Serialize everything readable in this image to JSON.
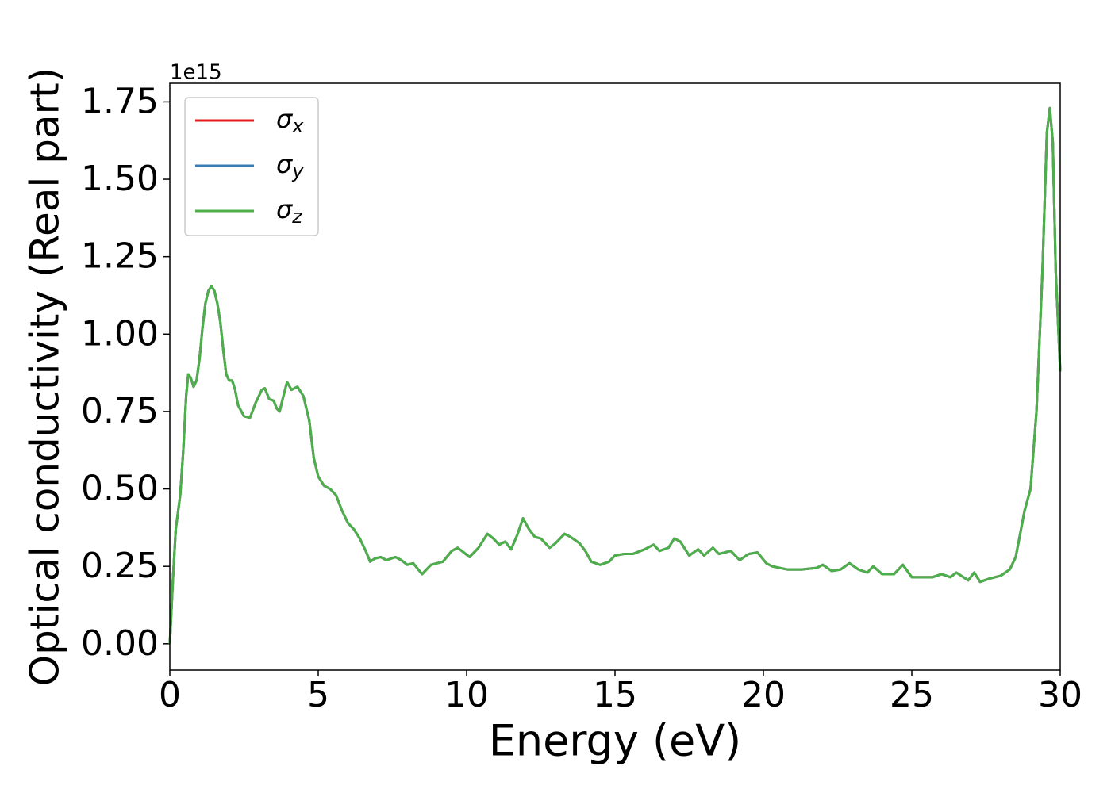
{
  "chart_data": {
    "type": "line",
    "y_label": "Optical conductivity (Real part)",
    "x_label": "Energy (eV)",
    "y_offset_label": "1e15",
    "legend": "upper left",
    "xlim": [
      0,
      30
    ],
    "xticks": [
      0,
      5,
      10,
      15,
      20,
      25,
      30
    ],
    "ylim": [
      -0.085,
      1.81
    ],
    "yticks": [
      {
        "value": 0,
        "label": "0.00"
      },
      0.25,
      {
        "value": 0.5,
        "label": "0.50"
      },
      0.75,
      {
        "value": 1,
        "label": "1.00"
      },
      1.25,
      {
        "value": 1.5,
        "label": "1.50"
      },
      1.75
    ],
    "x": [
      0,
      0.1,
      0.2,
      0.35,
      0.45,
      0.55,
      0.62,
      0.7,
      0.8,
      0.9,
      1.0,
      1.1,
      1.2,
      1.3,
      1.4,
      1.5,
      1.6,
      1.7,
      1.8,
      1.9,
      2.0,
      2.1,
      2.2,
      2.3,
      2.5,
      2.7,
      2.9,
      3.1,
      3.2,
      3.35,
      3.5,
      3.6,
      3.7,
      3.8,
      3.95,
      4.1,
      4.3,
      4.5,
      4.7,
      4.85,
      5.0,
      5.2,
      5.4,
      5.6,
      5.8,
      6.0,
      6.2,
      6.4,
      6.6,
      6.75,
      6.9,
      7.1,
      7.3,
      7.6,
      7.8,
      8.0,
      8.2,
      8.5,
      8.8,
      9.2,
      9.5,
      9.7,
      9.9,
      10.1,
      10.4,
      10.7,
      10.9,
      11.1,
      11.3,
      11.5,
      11.7,
      11.9,
      12.1,
      12.3,
      12.5,
      12.8,
      13.0,
      13.3,
      13.5,
      13.8,
      14.0,
      14.2,
      14.5,
      14.8,
      15.0,
      15.3,
      15.6,
      16.0,
      16.3,
      16.5,
      16.8,
      17.0,
      17.2,
      17.5,
      17.8,
      18.0,
      18.3,
      18.5,
      18.9,
      19.2,
      19.5,
      19.8,
      20.1,
      20.3,
      20.8,
      21.3,
      21.8,
      22.0,
      22.3,
      22.6,
      22.9,
      23.2,
      23.5,
      23.7,
      24.0,
      24.4,
      24.7,
      25.0,
      25.3,
      25.7,
      26.0,
      26.3,
      26.5,
      26.9,
      27.1,
      27.3,
      27.6,
      28.0,
      28.3,
      28.5,
      28.8,
      29.0,
      29.2,
      29.4,
      29.55,
      29.65,
      29.75,
      29.85,
      30
    ],
    "series": [
      {
        "name": "σx",
        "color": "#e41a1c",
        "values": [
          0,
          0.2,
          0.37,
          0.48,
          0.62,
          0.8,
          0.87,
          0.86,
          0.83,
          0.85,
          0.92,
          1.02,
          1.1,
          1.14,
          1.155,
          1.14,
          1.1,
          1.04,
          0.95,
          0.87,
          0.85,
          0.85,
          0.82,
          0.77,
          0.735,
          0.73,
          0.78,
          0.82,
          0.825,
          0.79,
          0.785,
          0.76,
          0.75,
          0.79,
          0.845,
          0.82,
          0.83,
          0.8,
          0.72,
          0.6,
          0.54,
          0.51,
          0.5,
          0.48,
          0.43,
          0.39,
          0.37,
          0.34,
          0.3,
          0.265,
          0.275,
          0.28,
          0.27,
          0.28,
          0.27,
          0.255,
          0.26,
          0.225,
          0.255,
          0.265,
          0.3,
          0.31,
          0.295,
          0.28,
          0.31,
          0.355,
          0.34,
          0.32,
          0.33,
          0.305,
          0.35,
          0.405,
          0.37,
          0.345,
          0.34,
          0.31,
          0.325,
          0.355,
          0.345,
          0.325,
          0.3,
          0.265,
          0.255,
          0.265,
          0.285,
          0.29,
          0.29,
          0.305,
          0.32,
          0.3,
          0.31,
          0.34,
          0.33,
          0.285,
          0.305,
          0.285,
          0.31,
          0.29,
          0.3,
          0.27,
          0.29,
          0.295,
          0.26,
          0.25,
          0.24,
          0.24,
          0.245,
          0.255,
          0.235,
          0.24,
          0.26,
          0.24,
          0.23,
          0.25,
          0.225,
          0.225,
          0.255,
          0.215,
          0.215,
          0.215,
          0.225,
          0.215,
          0.23,
          0.205,
          0.23,
          0.2,
          0.21,
          0.22,
          0.24,
          0.28,
          0.43,
          0.5,
          0.75,
          1.2,
          1.65,
          1.73,
          1.62,
          1.2,
          0.88
        ]
      },
      {
        "name": "σy",
        "color": "#377eb8",
        "values": [
          0,
          0.2,
          0.37,
          0.48,
          0.62,
          0.8,
          0.87,
          0.86,
          0.83,
          0.85,
          0.92,
          1.02,
          1.1,
          1.14,
          1.155,
          1.14,
          1.1,
          1.04,
          0.95,
          0.87,
          0.85,
          0.85,
          0.82,
          0.77,
          0.735,
          0.73,
          0.78,
          0.82,
          0.825,
          0.79,
          0.785,
          0.76,
          0.75,
          0.79,
          0.845,
          0.82,
          0.83,
          0.8,
          0.72,
          0.6,
          0.54,
          0.51,
          0.5,
          0.48,
          0.43,
          0.39,
          0.37,
          0.34,
          0.3,
          0.265,
          0.275,
          0.28,
          0.27,
          0.28,
          0.27,
          0.255,
          0.26,
          0.225,
          0.255,
          0.265,
          0.3,
          0.31,
          0.295,
          0.28,
          0.31,
          0.355,
          0.34,
          0.32,
          0.33,
          0.305,
          0.35,
          0.405,
          0.37,
          0.345,
          0.34,
          0.31,
          0.325,
          0.355,
          0.345,
          0.325,
          0.3,
          0.265,
          0.255,
          0.265,
          0.285,
          0.29,
          0.29,
          0.305,
          0.32,
          0.3,
          0.31,
          0.34,
          0.33,
          0.285,
          0.305,
          0.285,
          0.31,
          0.29,
          0.3,
          0.27,
          0.29,
          0.295,
          0.26,
          0.25,
          0.24,
          0.24,
          0.245,
          0.255,
          0.235,
          0.24,
          0.26,
          0.24,
          0.23,
          0.25,
          0.225,
          0.225,
          0.255,
          0.215,
          0.215,
          0.215,
          0.225,
          0.215,
          0.23,
          0.205,
          0.23,
          0.2,
          0.21,
          0.22,
          0.24,
          0.28,
          0.43,
          0.5,
          0.75,
          1.2,
          1.65,
          1.73,
          1.62,
          1.2,
          0.88
        ]
      },
      {
        "name": "σz",
        "color": "#4daf4a",
        "values": [
          0,
          0.2,
          0.37,
          0.48,
          0.62,
          0.8,
          0.87,
          0.86,
          0.83,
          0.85,
          0.92,
          1.02,
          1.1,
          1.14,
          1.155,
          1.14,
          1.1,
          1.04,
          0.95,
          0.87,
          0.85,
          0.85,
          0.82,
          0.77,
          0.735,
          0.73,
          0.78,
          0.82,
          0.825,
          0.79,
          0.785,
          0.76,
          0.75,
          0.79,
          0.845,
          0.82,
          0.83,
          0.8,
          0.72,
          0.6,
          0.54,
          0.51,
          0.5,
          0.48,
          0.43,
          0.39,
          0.37,
          0.34,
          0.3,
          0.265,
          0.275,
          0.28,
          0.27,
          0.28,
          0.27,
          0.255,
          0.26,
          0.225,
          0.255,
          0.265,
          0.3,
          0.31,
          0.295,
          0.28,
          0.31,
          0.355,
          0.34,
          0.32,
          0.33,
          0.305,
          0.35,
          0.405,
          0.37,
          0.345,
          0.34,
          0.31,
          0.325,
          0.355,
          0.345,
          0.325,
          0.3,
          0.265,
          0.255,
          0.265,
          0.285,
          0.29,
          0.29,
          0.305,
          0.32,
          0.3,
          0.31,
          0.34,
          0.33,
          0.285,
          0.305,
          0.285,
          0.31,
          0.29,
          0.3,
          0.27,
          0.29,
          0.295,
          0.26,
          0.25,
          0.24,
          0.24,
          0.245,
          0.255,
          0.235,
          0.24,
          0.26,
          0.24,
          0.23,
          0.25,
          0.225,
          0.225,
          0.255,
          0.215,
          0.215,
          0.215,
          0.225,
          0.215,
          0.23,
          0.205,
          0.23,
          0.2,
          0.21,
          0.22,
          0.24,
          0.28,
          0.43,
          0.5,
          0.75,
          1.2,
          1.65,
          1.73,
          1.62,
          1.2,
          0.88
        ]
      }
    ]
  }
}
